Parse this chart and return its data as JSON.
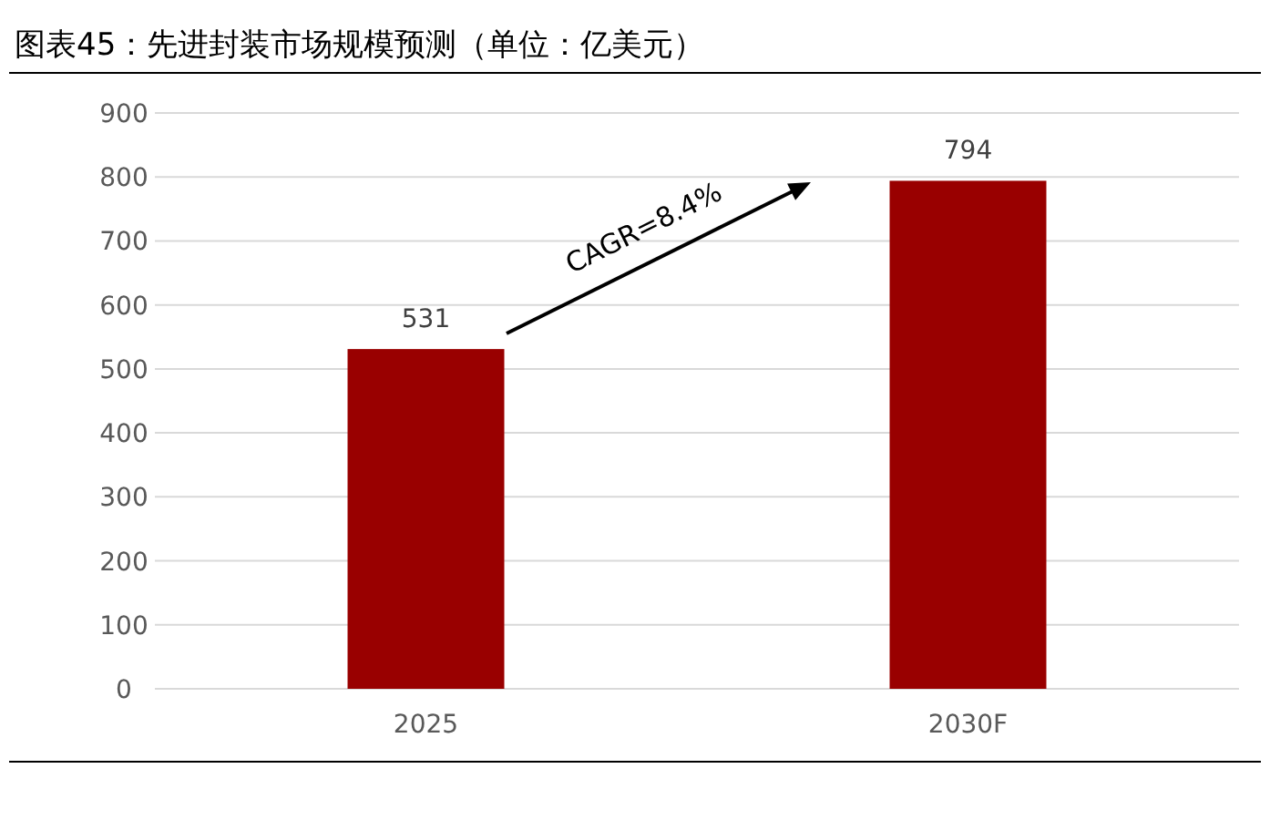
{
  "chart_data": {
    "type": "bar",
    "title": "图表45：先进封装市场规模预测（单位：亿美元）",
    "categories": [
      "2025",
      "2030F"
    ],
    "values": [
      531,
      794
    ],
    "color": "#990000",
    "ylim": [
      0,
      900
    ],
    "yticks": [
      0,
      100,
      200,
      300,
      400,
      500,
      600,
      700,
      800,
      900
    ],
    "grid": "y",
    "data_labels": true,
    "annotations": [
      "CAGR=8.4%"
    ]
  }
}
